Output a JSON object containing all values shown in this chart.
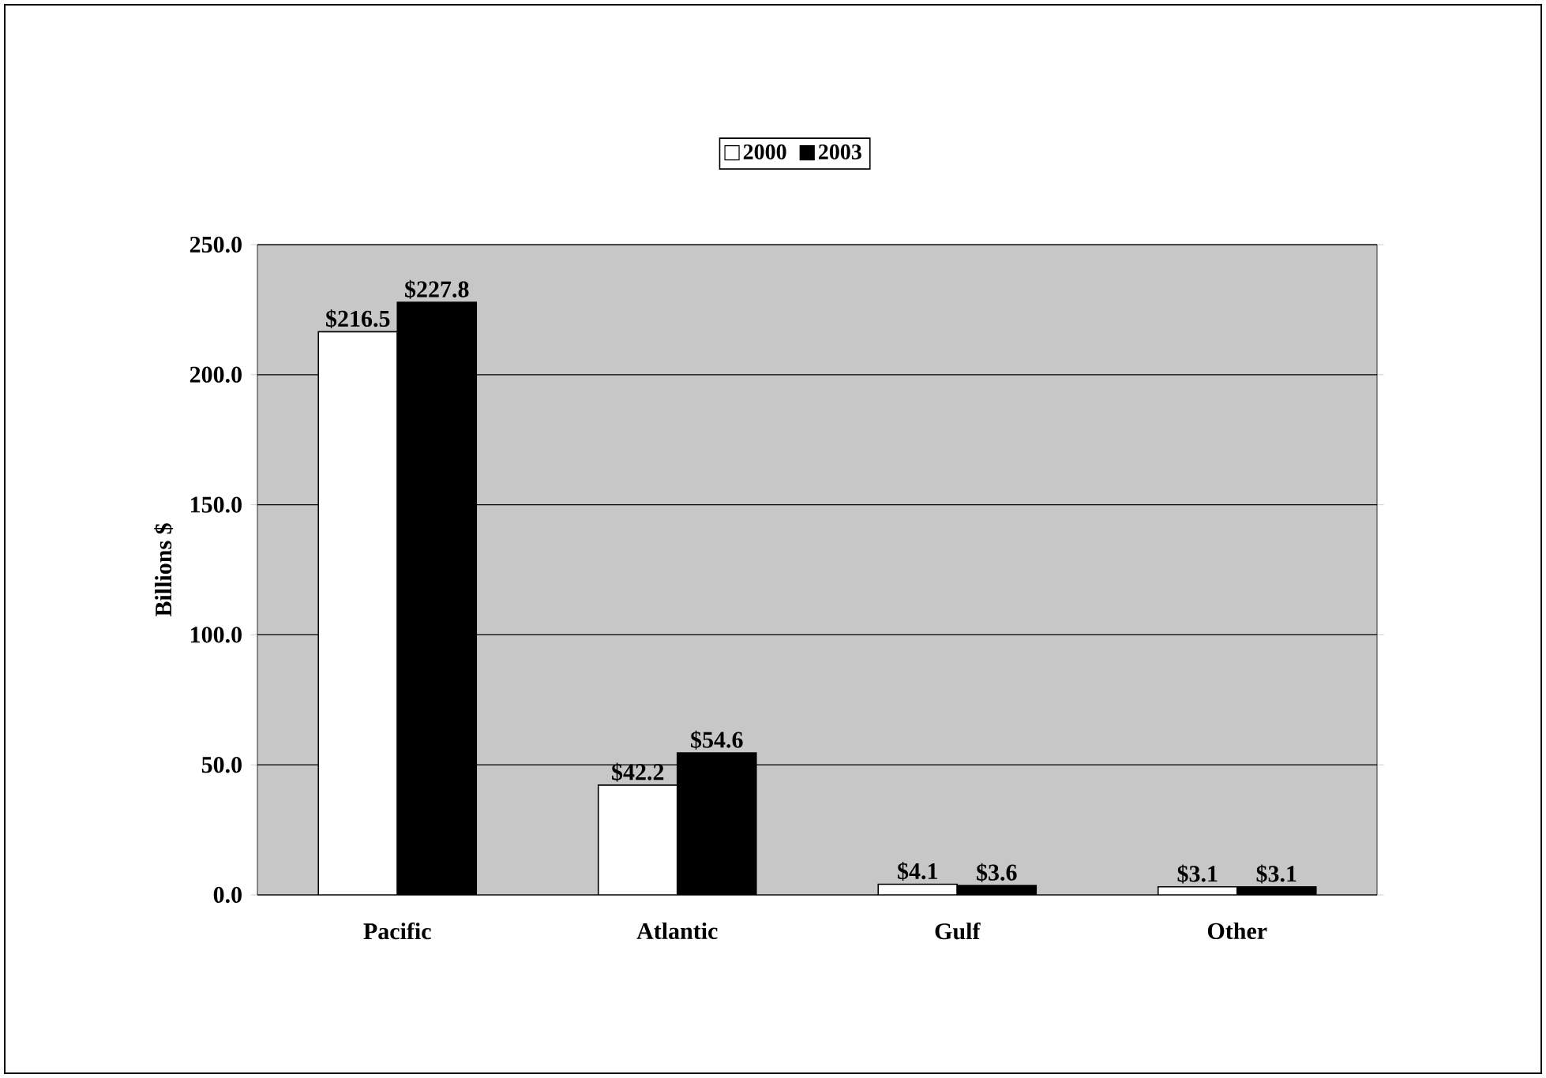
{
  "chart_data": {
    "type": "bar",
    "ylabel": "Billions $",
    "categories": [
      "Pacific",
      "Atlantic",
      "Gulf",
      "Other"
    ],
    "series": [
      {
        "name": "2000",
        "color": "#ffffff",
        "values": [
          216.5,
          42.2,
          4.1,
          3.1
        ],
        "value_labels": [
          "$216.5",
          "$42.2",
          "$4.1",
          "$3.1"
        ]
      },
      {
        "name": "2003",
        "color": "#000000",
        "values": [
          227.8,
          54.6,
          3.6,
          3.1
        ],
        "value_labels": [
          "$227.8",
          "$54.6",
          "$3.6",
          "$3.1"
        ]
      }
    ],
    "ylim": [
      0,
      250
    ],
    "yticks": [
      {
        "value": 0,
        "label": "0.0"
      },
      {
        "value": 50,
        "label": "50.0"
      },
      {
        "value": 100,
        "label": "100.0"
      },
      {
        "value": 150,
        "label": "150.0"
      },
      {
        "value": 200,
        "label": "200.0"
      },
      {
        "value": 250,
        "label": "250.0"
      }
    ],
    "grid": "y",
    "legend": "top"
  }
}
